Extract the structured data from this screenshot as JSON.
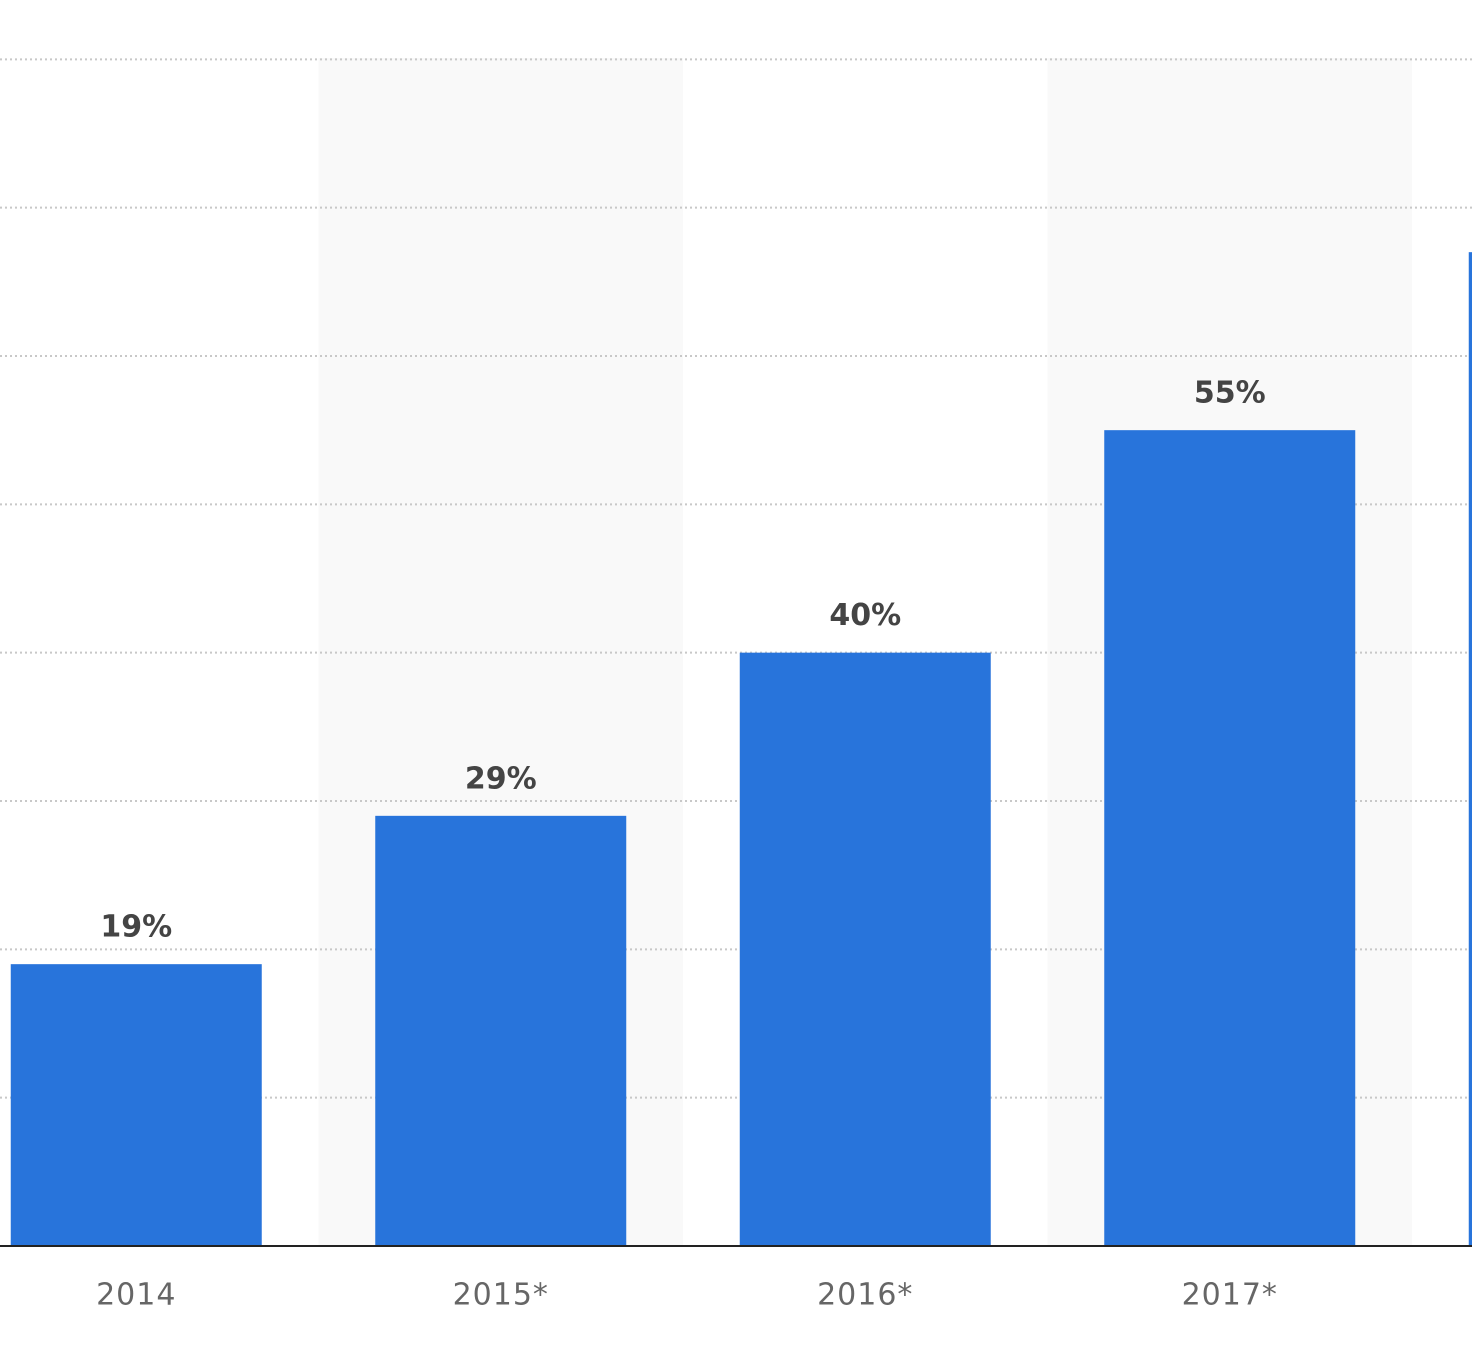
{
  "chart_data": {
    "type": "bar",
    "categories": [
      "2014",
      "2015*",
      "2016*",
      "2017*",
      null
    ],
    "values": [
      19,
      29,
      40,
      55,
      67
    ],
    "value_labels": [
      "19%",
      "29%",
      "40%",
      "55%",
      null
    ],
    "color": "#2874db",
    "ylim": [
      0,
      84
    ],
    "yticks": [
      10,
      20,
      30,
      40,
      50,
      60,
      70,
      80
    ],
    "grid": true
  }
}
